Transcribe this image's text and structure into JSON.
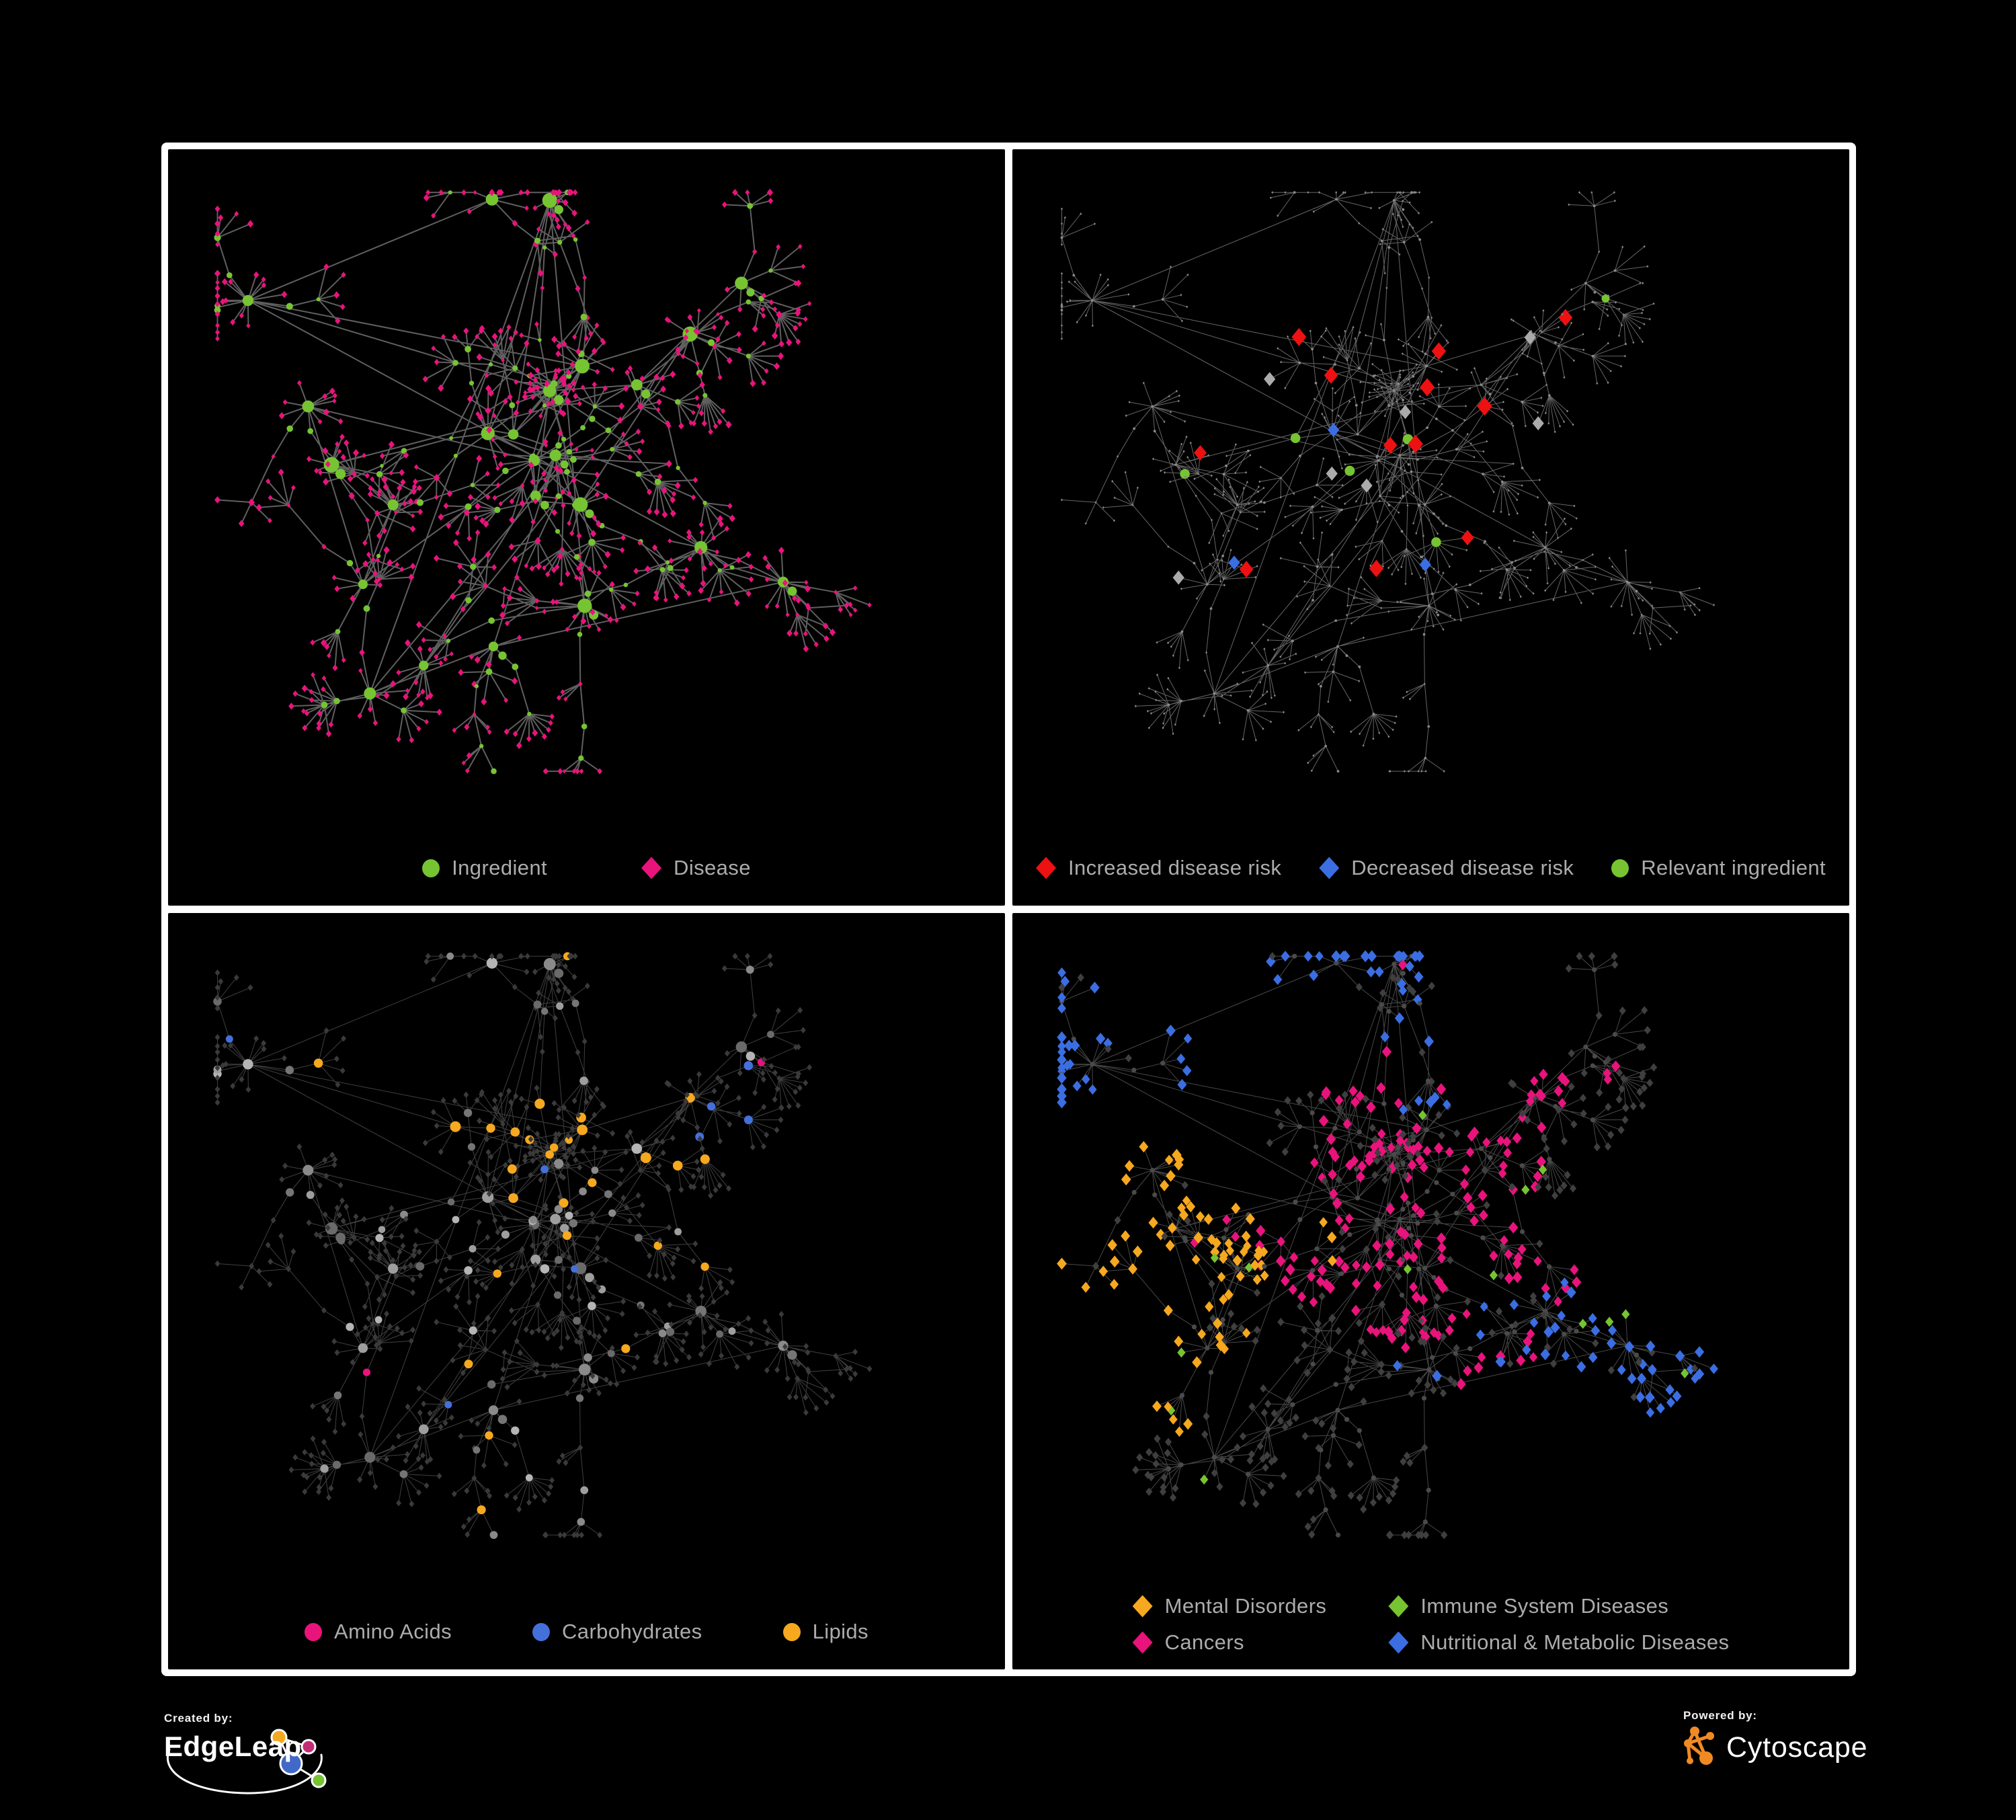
{
  "canvas": {
    "background": "#000000",
    "frame_color": "#FFFFFF",
    "legend_text_color": "#ACACAC"
  },
  "panels": [
    {
      "name": "ingredient-disease-network",
      "legend_rows": [
        [
          {
            "label": "Ingredient",
            "shape": "circle",
            "color": "#76C432"
          },
          {
            "label": "Disease",
            "shape": "diamond",
            "color": "#E9137C"
          }
        ]
      ]
    },
    {
      "name": "disease-risk-network",
      "legend_rows": [
        [
          {
            "label": "Increased disease risk",
            "shape": "diamond",
            "color": "#EE1111"
          },
          {
            "label": "Decreased disease risk",
            "shape": "diamond",
            "color": "#3B6EE3"
          },
          {
            "label": "Relevant ingredient",
            "shape": "circle",
            "color": "#76C432"
          }
        ]
      ]
    },
    {
      "name": "ingredient-class-network",
      "legend_rows": [
        [
          {
            "label": "Amino Acids",
            "shape": "circle",
            "color": "#E9137C"
          },
          {
            "label": "Carbohydrates",
            "shape": "circle",
            "color": "#4470DB"
          },
          {
            "label": "Lipids",
            "shape": "circle",
            "color": "#F6A81F"
          }
        ]
      ]
    },
    {
      "name": "disease-class-network",
      "legend_rows": [
        [
          {
            "label": "Mental Disorders",
            "shape": "diamond",
            "color": "#F6A81F"
          },
          {
            "label": "Immune System Diseases",
            "shape": "diamond",
            "color": "#76C432"
          }
        ],
        [
          {
            "label": "Cancers",
            "shape": "diamond",
            "color": "#E9137C"
          },
          {
            "label": "Nutritional & Metabolic Diseases",
            "shape": "diamond",
            "color": "#3B6EE3"
          }
        ]
      ]
    }
  ],
  "branding": {
    "created_by_label": "Created by:",
    "created_by_name": "EdgeLeap",
    "powered_by_label": "Powered by:",
    "powered_by_name": "Cytoscape",
    "cytoscape_orange": "#F08A24",
    "edgeleap_colors": {
      "orange": "#F6A81F",
      "magenta": "#C42B75",
      "blue": "#4169C8",
      "green": "#76C432"
    }
  },
  "network": {
    "type": "node-link-graph",
    "seed": 20,
    "hub_count": 24,
    "node_shapes": {
      "ingredient": "circle",
      "disease": "diamond"
    },
    "views": [
      {
        "edge_color": "#646464",
        "edge_width": 2,
        "edge_opacity": 0.95,
        "circle_color": "#76C432",
        "diamond_color": "#E9137C"
      },
      {
        "edge_color": "#787878",
        "edge_width": 1,
        "edge_opacity": 0.85,
        "base_color": "#8A8A8A",
        "increased_color": "#EE1111",
        "decreased_color": "#3B6EE3",
        "unchanged_color": "#ABABAB",
        "relevant_color": "#76C432"
      },
      {
        "edge_color": "#505050",
        "edge_width": 1,
        "edge_opacity": 0.8,
        "diamond_color": "#3A3A3A",
        "gray_palette": [
          "#9E9E9E",
          "#8A8A8A",
          "#B5B5B5",
          "#757575",
          "#6A6A6A"
        ],
        "amino_color": "#E9137C",
        "carbs_color": "#4470DB",
        "lipids_color": "#F6A81F"
      },
      {
        "edge_color": "#5A5A5A",
        "edge_width": 1,
        "edge_opacity": 0.8,
        "circle_color": "#4A4A4A",
        "diamond_color": "#3F3F3F",
        "mental_color": "#F6A81F",
        "immune_color": "#76C432",
        "cancers_color": "#E9137C",
        "nutritional_color": "#3B6EE3"
      }
    ]
  }
}
